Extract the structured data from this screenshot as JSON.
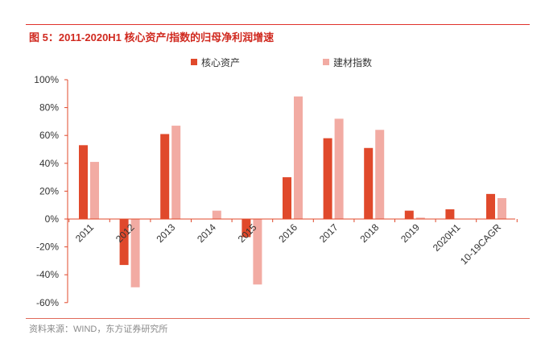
{
  "figure": {
    "title": "图 5：2011-2020H1 核心资产/指数的归母净利润增速",
    "source": "资料来源：WIND，东方证券研究所"
  },
  "chart_data": {
    "type": "bar",
    "title": "",
    "xlabel": "",
    "ylabel": "",
    "categories": [
      "2011",
      "2012",
      "2013",
      "2014",
      "2015",
      "2016",
      "2017",
      "2018",
      "2019",
      "2020H1",
      "10-19CAGR"
    ],
    "series": [
      {
        "name": "核心资产",
        "color": "#e0492b",
        "values": [
          53,
          -33,
          61,
          0,
          -13,
          30,
          58,
          51,
          6,
          7,
          18
        ]
      },
      {
        "name": "建材指数",
        "color": "#f2aba3",
        "values": [
          41,
          -49,
          67,
          6,
          -47,
          88,
          72,
          64,
          1,
          0,
          15
        ]
      }
    ],
    "y_ticks": [
      "100%",
      "80%",
      "60%",
      "40%",
      "20%",
      "0%",
      "-20%",
      "-40%",
      "-60%"
    ],
    "ylim": [
      -60,
      100
    ],
    "legend_position": "top",
    "grid": false
  }
}
